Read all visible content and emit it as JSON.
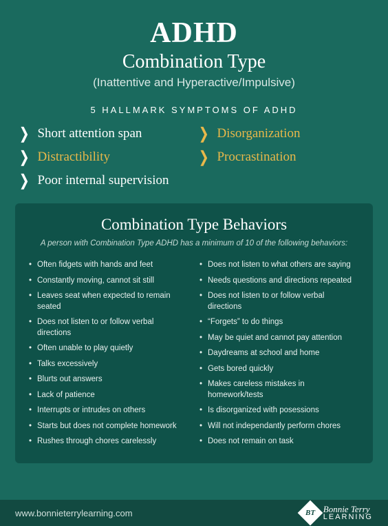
{
  "colors": {
    "background": "#1a6a5e",
    "box_background": "#0f5249",
    "footer_background": "#124a41",
    "accent_gold": "#e8b84a",
    "text_primary": "#ffffff",
    "text_muted": "#d8e8e4",
    "text_list": "#e8f0ee"
  },
  "header": {
    "title": "ADHD",
    "subtitle1": "Combination Type",
    "subtitle2": "(Inattentive and Hyperactive/Impulsive)"
  },
  "hallmark": {
    "title": "5 HALLMARK SYMPTOMS OF ADHD",
    "items": [
      {
        "label": "Short attention span",
        "highlight": false
      },
      {
        "label": "Disorganization",
        "highlight": true
      },
      {
        "label": "Distractibility",
        "highlight": true
      },
      {
        "label": "Procrastination",
        "highlight": true
      },
      {
        "label": "Poor internal supervision",
        "highlight": false
      }
    ]
  },
  "behaviors": {
    "title": "Combination Type Behaviors",
    "subtitle": "A person with Combination Type ADHD has a minimum of 10 of the following behaviors:",
    "left": [
      "Often fidgets with hands and feet",
      "Constantly moving, cannot sit still",
      "Leaves seat when expected to remain seated",
      "Does not listen to or follow verbal directions",
      "Often unable to play quietly",
      "Talks excessively",
      "Blurts out answers",
      "Lack of patience",
      "Interrupts or intrudes on others",
      "Starts but does not complete homework",
      "Rushes through chores carelessly"
    ],
    "right": [
      "Does not listen to what others are saying",
      "Needs questions and directions repeated",
      "Does not listen to or follow verbal directions",
      "“Forgets” to do things",
      "May be quiet and cannot pay attention",
      "Daydreams at school and home",
      "Gets bored quickly",
      "Makes careless mistakes in homework/tests",
      "Is disorganized with posessions",
      "Will not independantly perform chores",
      "Does not remain on task"
    ]
  },
  "footer": {
    "url": "www.bonnieterrylearning.com",
    "logo_badge": "BT",
    "logo_line1": "Bonnie Terry",
    "logo_line2": "LEARNING"
  }
}
